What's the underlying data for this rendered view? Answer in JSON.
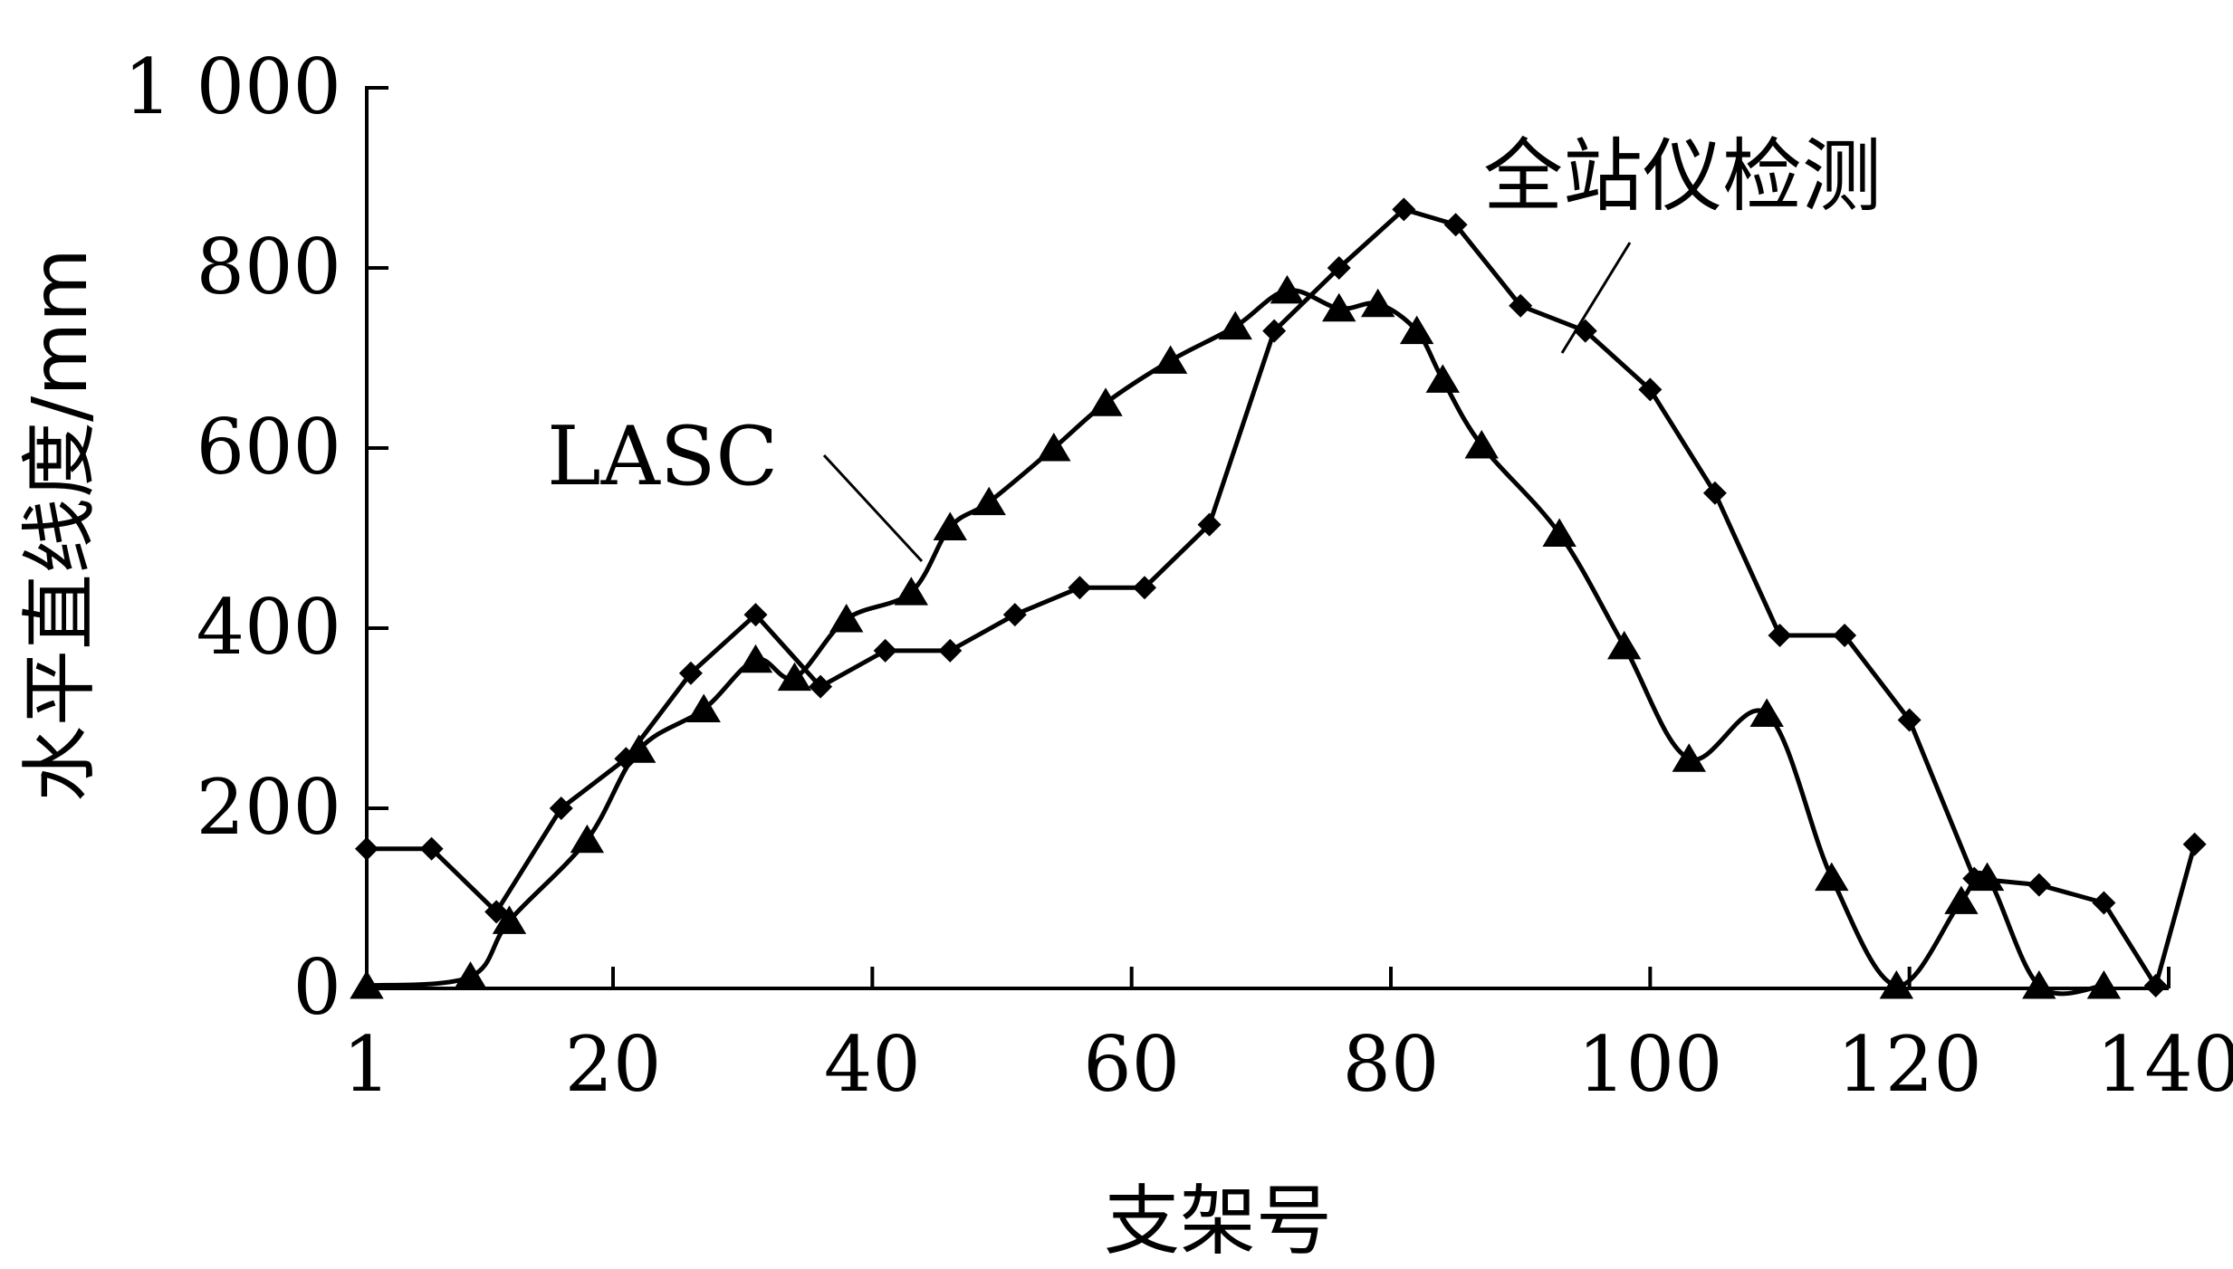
{
  "chart_data": {
    "type": "line",
    "title": "",
    "xlabel": "支架号",
    "ylabel": "水平直线度/mm",
    "xlim": [
      1,
      140
    ],
    "ylim": [
      0,
      1000
    ],
    "x_ticks": [
      1,
      20,
      40,
      60,
      80,
      100,
      120,
      140
    ],
    "x_tick_labels": [
      "1",
      "20",
      "40",
      "60",
      "80",
      "100",
      "120",
      "140"
    ],
    "y_ticks": [
      0,
      200,
      400,
      600,
      800,
      1000
    ],
    "y_tick_labels": [
      "0",
      "200",
      "400",
      "600",
      "800",
      "1 000"
    ],
    "grid": false,
    "series": [
      {
        "name": "全站仪检测",
        "marker": "diamond",
        "points": [
          [
            1,
            155
          ],
          [
            6,
            155
          ],
          [
            11,
            85
          ],
          [
            16,
            200
          ],
          [
            21,
            255
          ],
          [
            26,
            350
          ],
          [
            31,
            415
          ],
          [
            36,
            335
          ],
          [
            41,
            375
          ],
          [
            46,
            375
          ],
          [
            51,
            415
          ],
          [
            56,
            445
          ],
          [
            61,
            445
          ],
          [
            66,
            515
          ],
          [
            71,
            730
          ],
          [
            76,
            800
          ],
          [
            81,
            865
          ],
          [
            85,
            848
          ],
          [
            90,
            758
          ],
          [
            95,
            730
          ],
          [
            100,
            665
          ],
          [
            105,
            550
          ],
          [
            110,
            392
          ],
          [
            115,
            392
          ],
          [
            120,
            298
          ],
          [
            125,
            122
          ],
          [
            130,
            115
          ],
          [
            135,
            95
          ],
          [
            139,
            3
          ],
          [
            142,
            160
          ]
        ]
      },
      {
        "name": "LASC",
        "marker": "triangle",
        "points": [
          [
            1,
            3
          ],
          [
            9,
            13
          ],
          [
            12,
            75
          ],
          [
            18,
            165
          ],
          [
            22,
            265
          ],
          [
            27,
            310
          ],
          [
            31,
            365
          ],
          [
            34,
            345
          ],
          [
            38,
            410
          ],
          [
            43,
            440
          ],
          [
            46,
            512
          ],
          [
            49,
            540
          ],
          [
            54,
            600
          ],
          [
            58,
            650
          ],
          [
            63,
            697
          ],
          [
            68,
            735
          ],
          [
            72,
            775
          ],
          [
            76,
            755
          ],
          [
            79,
            760
          ],
          [
            82,
            730
          ],
          [
            84,
            676
          ],
          [
            87,
            603
          ],
          [
            93,
            505
          ],
          [
            98,
            380
          ],
          [
            103,
            255
          ],
          [
            109,
            305
          ],
          [
            114,
            123
          ],
          [
            119,
            3
          ],
          [
            124,
            97
          ],
          [
            126,
            123
          ],
          [
            130,
            3
          ],
          [
            135,
            3
          ]
        ]
      }
    ],
    "annotations": [
      {
        "text": "全站仪检测",
        "target_series": "全站仪检测"
      },
      {
        "text": "LASC",
        "target_series": "LASC"
      }
    ]
  }
}
